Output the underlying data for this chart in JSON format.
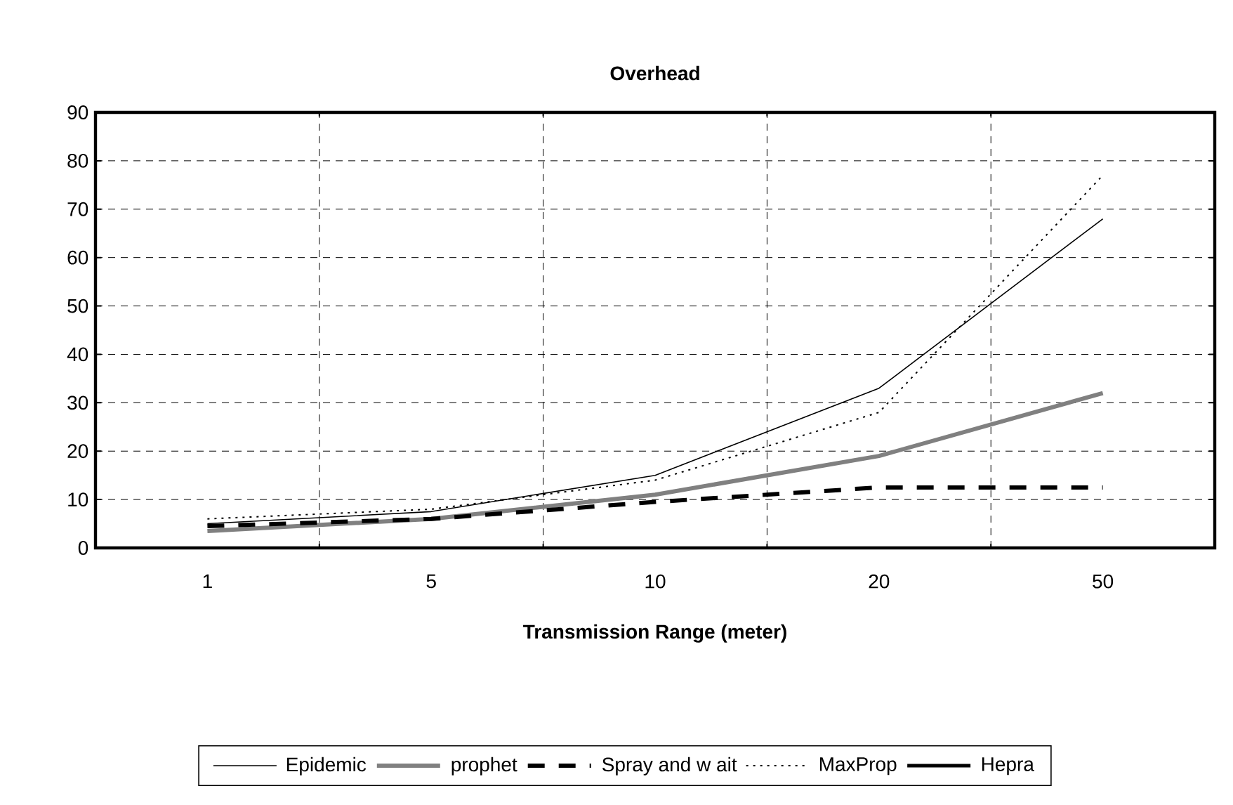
{
  "chart_data": {
    "type": "line",
    "title": "Overhead",
    "xlabel": "Transmission Range (meter)",
    "categories": [
      "1",
      "5",
      "10",
      "20",
      "50"
    ],
    "series": [
      {
        "name": "Epidemic",
        "color": "#000000",
        "line_style": "solid",
        "values": [
          5,
          7.5,
          15,
          33,
          68
        ]
      },
      {
        "name": "prophet",
        "color": "#808080",
        "line_style": "solid",
        "values": [
          3.5,
          6,
          11,
          19,
          32
        ]
      },
      {
        "name": "Spray and w ait",
        "color": "#000000",
        "line_style": "dashed",
        "values": [
          4.5,
          6,
          9.5,
          12.5,
          12.5
        ]
      },
      {
        "name": "MaxProp",
        "color": "#000000",
        "line_style": "dotted",
        "values": [
          6,
          8,
          14,
          28,
          77
        ]
      },
      {
        "name": "Hepra",
        "color": "#000000",
        "line_style": "solid",
        "values": [
          null,
          null,
          null,
          null,
          null
        ]
      }
    ],
    "ylim": [
      0,
      90
    ],
    "yticks": [
      0,
      10,
      20,
      30,
      40,
      50,
      60,
      70,
      80,
      90
    ],
    "grid": true,
    "legend": "bottom"
  }
}
